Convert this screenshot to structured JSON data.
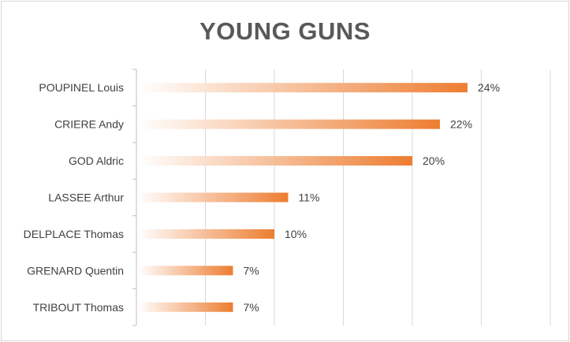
{
  "chart_data": {
    "type": "bar",
    "orientation": "horizontal",
    "title": "YOUNG GUNS",
    "categories": [
      "POUPINEL Louis",
      "CRIERE Andy",
      "GOD Aldric",
      "LASSEE Arthur",
      "DELPLACE Thomas",
      "GRENARD Quentin",
      "TRIBOUT Thomas"
    ],
    "values": [
      24,
      22,
      20,
      11,
      10,
      7,
      7
    ],
    "value_labels": [
      "24%",
      "22%",
      "20%",
      "11%",
      "10%",
      "7%",
      "7%"
    ],
    "unit": "%",
    "xlim": [
      0,
      30
    ],
    "grid": true,
    "legend": "none",
    "bar_color": "#ED7D31",
    "bar_gradient_start": "#FFFFFF"
  }
}
